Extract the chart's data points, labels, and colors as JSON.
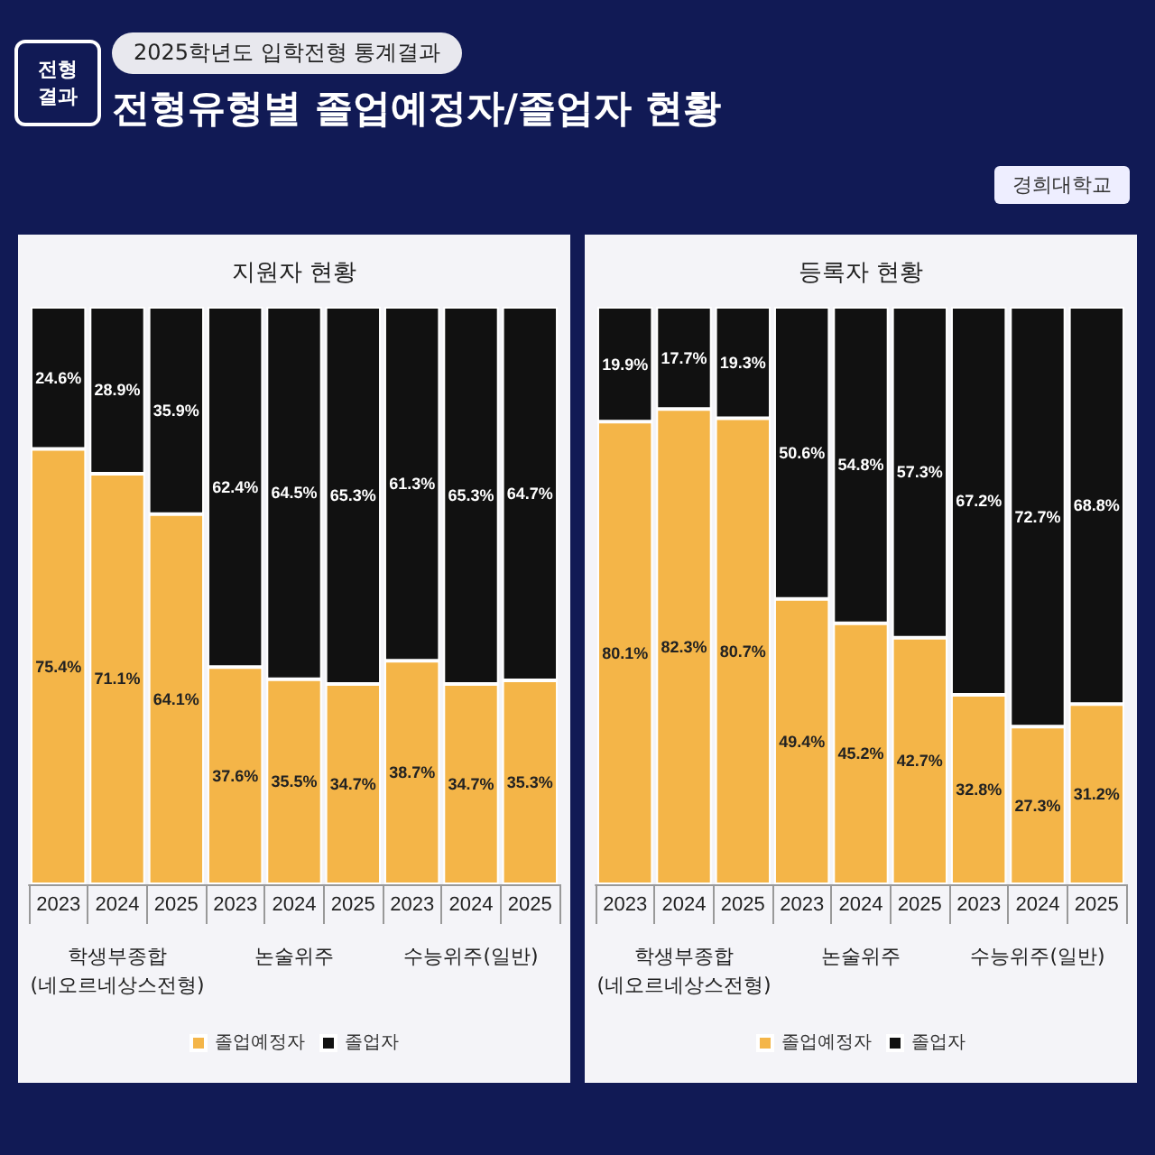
{
  "chart_data": [
    {
      "type": "other",
      "title": "전형유형별 졸업예정자/졸업자 현황",
      "subtitle": "2025학년도 입학전형 통계결과",
      "annotations": [
        "전형결과",
        "경희대학교"
      ]
    },
    {
      "type": "bar",
      "title": "지원자 현황",
      "categories": [
        "2023",
        "2024",
        "2025",
        "2023",
        "2024",
        "2025",
        "2023",
        "2024",
        "2025"
      ],
      "stacked": true,
      "ylim": [
        0,
        100
      ],
      "tick_labels": "x",
      "legend": "bottom",
      "series": [
        {
          "name": "졸업예정자",
          "color": "#f4b548",
          "values": [
            75.4,
            71.1,
            64.1,
            37.6,
            35.5,
            34.7,
            38.7,
            34.7,
            35.3
          ],
          "value_labels": [
            "75.4%",
            "71.1%",
            "64.1%",
            "37.6%",
            "35.5%",
            "34.7%",
            "38.7%",
            "34.7%",
            "35.3%"
          ]
        },
        {
          "name": "졸업자",
          "color": "#111111",
          "values": [
            24.6,
            28.9,
            35.9,
            62.4,
            64.5,
            65.3,
            61.3,
            65.3,
            64.7
          ],
          "value_labels": [
            "24.6%",
            "28.9%",
            "35.9%",
            "62.4%",
            "64.5%",
            "65.3%",
            "61.3%",
            "65.3%",
            "64.7%"
          ]
        }
      ],
      "annotations": [
        "학생부종합\n(네오르네상스전형)",
        "논술위주",
        "수능위주(일반)"
      ]
    },
    {
      "type": "bar",
      "title": "등록자 현황",
      "categories": [
        "2023",
        "2024",
        "2025",
        "2023",
        "2024",
        "2025",
        "2023",
        "2024",
        "2025"
      ],
      "stacked": true,
      "ylim": [
        0,
        100
      ],
      "tick_labels": "x",
      "legend": "bottom",
      "series": [
        {
          "name": "졸업예정자",
          "color": "#f4b548",
          "values": [
            80.1,
            82.3,
            80.7,
            49.4,
            45.2,
            42.7,
            32.8,
            27.3,
            31.2
          ],
          "value_labels": [
            "80.1%",
            "82.3%",
            "80.7%",
            "49.4%",
            "45.2%",
            "42.7%",
            "32.8%",
            "27.3%",
            "31.2%"
          ]
        },
        {
          "name": "졸업자",
          "color": "#111111",
          "values": [
            19.9,
            17.7,
            19.3,
            50.6,
            54.8,
            57.3,
            67.2,
            72.7,
            68.8
          ],
          "value_labels": [
            "19.9%",
            "17.7%",
            "19.3%",
            "50.6%",
            "54.8%",
            "57.3%",
            "67.2%",
            "72.7%",
            "68.8%"
          ]
        }
      ],
      "annotations": [
        "학생부종합\n(네오르네상스전형)",
        "논술위주",
        "수능위주(일반)"
      ]
    }
  ]
}
